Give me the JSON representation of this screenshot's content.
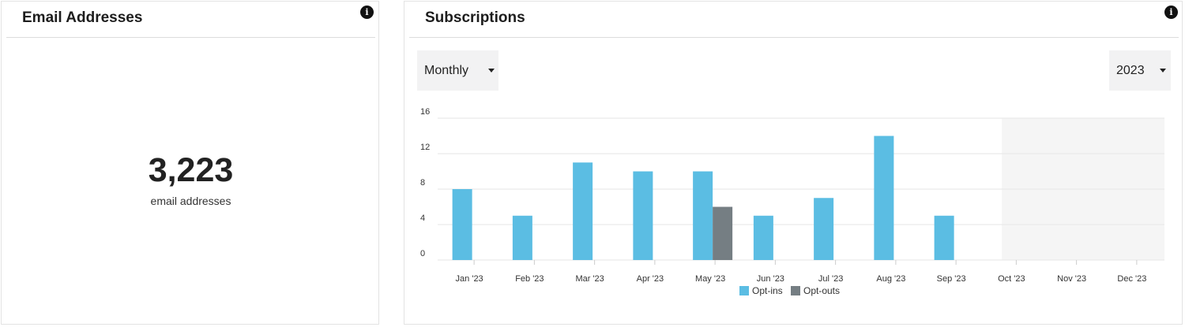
{
  "email_card": {
    "title": "Email Addresses",
    "count": "3,223",
    "caption": "email addresses",
    "info_icon": "info-icon"
  },
  "subs_card": {
    "title": "Subscriptions",
    "info_icon": "info-icon",
    "period_select": {
      "value": "Monthly"
    },
    "year_select": {
      "value": "2023"
    }
  },
  "colors": {
    "opt_ins": "#5bbde3",
    "opt_outs": "#757e83",
    "future_shade": "#f5f5f5",
    "grid": "#e6e6e6"
  },
  "chart_data": {
    "type": "bar",
    "categories": [
      "Jan '23",
      "Feb '23",
      "Mar '23",
      "Apr '23",
      "May '23",
      "Jun '23",
      "Jul '23",
      "Aug '23",
      "Sep '23",
      "Oct '23",
      "Nov '23",
      "Dec '23"
    ],
    "series": [
      {
        "name": "Opt-ins",
        "values": [
          8,
          5,
          11,
          10,
          10,
          5,
          7,
          14,
          5,
          0,
          0,
          0
        ]
      },
      {
        "name": "Opt-outs",
        "values": [
          0,
          0,
          0,
          0,
          6,
          0,
          0,
          0,
          0,
          0,
          0,
          0
        ]
      }
    ],
    "yticks": [
      "0",
      "4",
      "8",
      "12",
      "16"
    ],
    "ylim": [
      0,
      16
    ],
    "future_months_shaded": [
      "Oct '23",
      "Nov '23",
      "Dec '23"
    ],
    "grid": true,
    "legend_position": "bottom-center"
  }
}
